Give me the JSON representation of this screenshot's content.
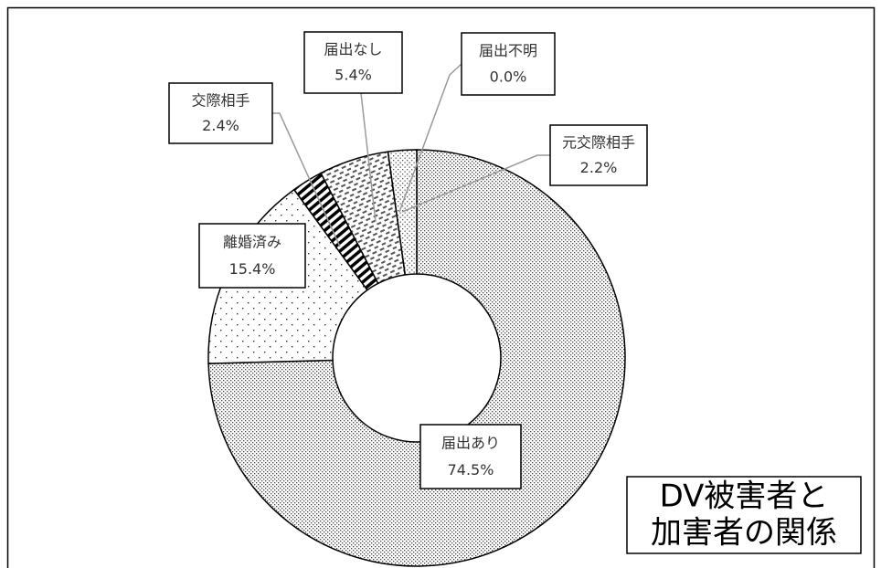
{
  "chart_data": {
    "type": "donut",
    "title_lines": [
      "DV被害者と",
      "加害者の関係"
    ],
    "categories": [
      "届出あり",
      "離婚済み",
      "交際相手",
      "届出なし",
      "届出不明",
      "元交際相手"
    ],
    "values": [
      74.5,
      15.4,
      2.4,
      5.4,
      0.0,
      2.2
    ],
    "value_labels": [
      "74.5%",
      "15.4%",
      "2.4%",
      "5.4%",
      "0.0%",
      "2.2%"
    ]
  }
}
